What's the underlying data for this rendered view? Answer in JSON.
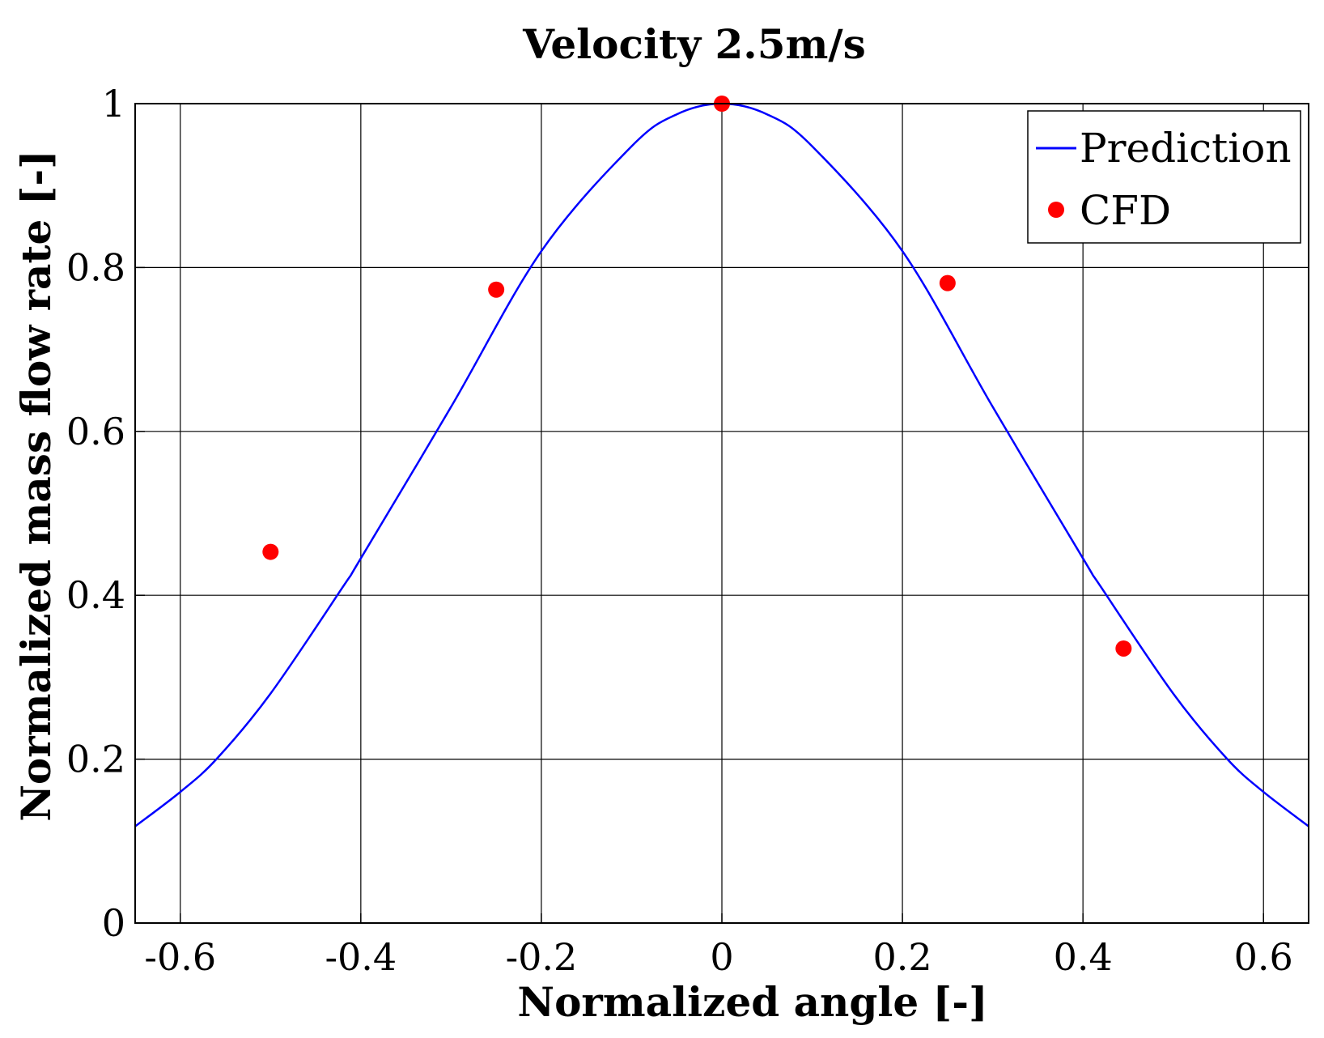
{
  "chart_data": {
    "type": "line",
    "title": "Velocity 2.5m/s",
    "xlabel": "Normalized angle [-]",
    "ylabel": "Normalized mass flow rate [-]",
    "xlim": [
      -0.65,
      0.65
    ],
    "ylim": [
      0,
      1
    ],
    "grid": true,
    "legend_position": "top-right",
    "x_ticks": [
      -0.6,
      -0.4,
      -0.2,
      0,
      0.2,
      0.4,
      0.6
    ],
    "x_tick_labels": [
      "-0.6",
      "-0.4",
      "-0.2",
      "0",
      "0.2",
      "0.4",
      "0.6"
    ],
    "y_ticks": [
      0,
      0.2,
      0.4,
      0.6,
      0.8,
      1
    ],
    "y_tick_labels": [
      "0",
      "0.2",
      "0.4",
      "0.6",
      "0.8",
      "1"
    ],
    "series": [
      {
        "name": "Prediction",
        "kind": "line",
        "color": "#0000ff",
        "x": [
          -0.65,
          -0.6,
          -0.56,
          -0.5,
          -0.42,
          -0.4,
          -0.3,
          -0.2,
          -0.1,
          -0.05,
          0,
          0.05,
          0.1,
          0.2,
          0.3,
          0.4,
          0.42,
          0.5,
          0.56,
          0.6,
          0.65
        ],
        "y": [
          0.118,
          0.16,
          0.2,
          0.28,
          0.41,
          0.445,
          0.63,
          0.82,
          0.948,
          0.987,
          1.0,
          0.987,
          0.948,
          0.82,
          0.63,
          0.445,
          0.41,
          0.28,
          0.2,
          0.16,
          0.118
        ]
      },
      {
        "name": "CFD",
        "kind": "scatter",
        "color": "#ff0000",
        "x": [
          -0.5,
          -0.25,
          0,
          0.25,
          0.445
        ],
        "y": [
          0.453,
          0.773,
          1.0,
          0.781,
          0.335
        ]
      }
    ]
  }
}
